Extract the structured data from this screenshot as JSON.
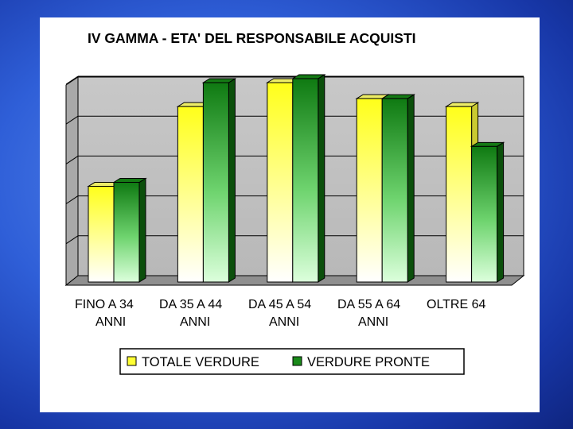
{
  "colors": {
    "slide_background": "#2f5fd8",
    "plot_wall": "#c0c0c0",
    "series_yellow": "#ffff33",
    "series_green": "#1a8a1a"
  },
  "chart_data": {
    "type": "bar",
    "title": "IV GAMMA - ETA' DEL RESPONSABILE ACQUISTI",
    "categories": [
      [
        "FINO A 34",
        "ANNI"
      ],
      [
        "DA 35 A 44",
        "ANNI"
      ],
      [
        "DA 45 A 54",
        "ANNI"
      ],
      [
        "DA 55 A 64",
        "ANNI"
      ],
      [
        "OLTRE 64",
        ""
      ]
    ],
    "series": [
      {
        "name": "TOTALE VERDURE",
        "color": "#ffff33",
        "values": [
          12,
          22,
          25,
          23,
          22
        ]
      },
      {
        "name": "VERDURE PRONTE",
        "color": "#1a8a1a",
        "values": [
          12.5,
          25,
          25.5,
          23,
          17
        ]
      }
    ],
    "ylim": [
      0,
      25
    ],
    "y_ticks_labeled": false,
    "grid": true,
    "style": "3d",
    "legend_position": "bottom"
  }
}
